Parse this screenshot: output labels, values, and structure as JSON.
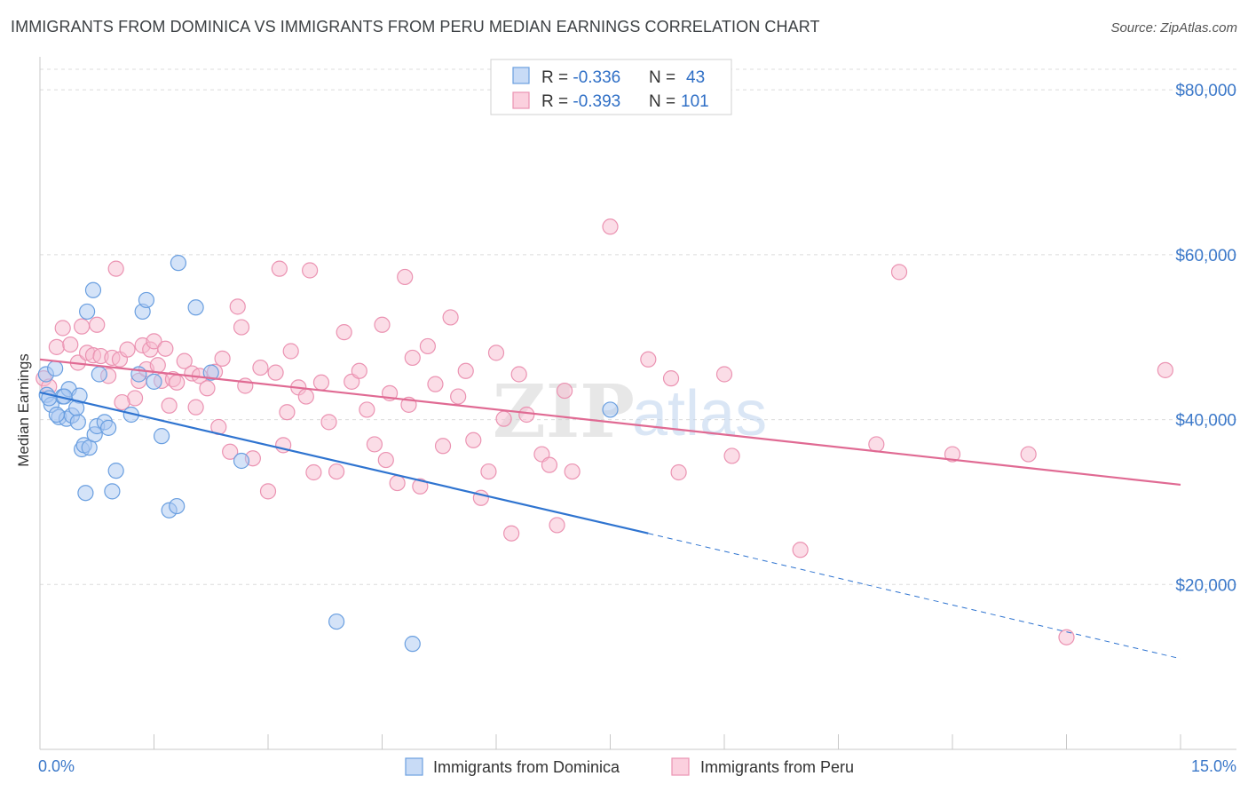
{
  "title": "IMMIGRANTS FROM DOMINICA VS IMMIGRANTS FROM PERU MEDIAN EARNINGS CORRELATION CHART",
  "source": "Source: ZipAtlas.com",
  "watermark": {
    "zip": "ZIP",
    "atlas": "atlas"
  },
  "stats": {
    "dominica": {
      "r_label": "R = ",
      "r_value": "-0.336",
      "n_label": "N = ",
      "n_value": "43"
    },
    "peru": {
      "r_label": "R = ",
      "r_value": "-0.393",
      "n_label": "N = ",
      "n_value": "101"
    }
  },
  "colors": {
    "dominica_fill": "#a9c8f2",
    "dominica_stroke": "#6a9fe0",
    "dominica_line": "#2f74d0",
    "peru_fill": "#f7bcd0",
    "peru_stroke": "#eb93b2",
    "peru_line": "#e06a93",
    "axis_text": "#3b78c9",
    "grid": "#dcdcdc"
  },
  "chart_data": {
    "type": "scatter",
    "title": "IMMIGRANTS FROM DOMINICA VS IMMIGRANTS FROM PERU MEDIAN EARNINGS CORRELATION CHART",
    "xlabel": "",
    "ylabel": "Median Earnings",
    "xlim": [
      0,
      15
    ],
    "ylim": [
      0,
      84000
    ],
    "x_tick_labels": [
      "0.0%",
      "15.0%"
    ],
    "y_ticks": [
      {
        "value": 20000,
        "label": "$20,000"
      },
      {
        "value": 40000,
        "label": "$40,000"
      },
      {
        "value": 60000,
        "label": "$60,000"
      },
      {
        "value": 80000,
        "label": "$80,000"
      }
    ],
    "grid": true,
    "legend_position": "bottom",
    "series": [
      {
        "name": "Immigrants from Dominica",
        "points": [
          [
            0.08,
            45500
          ],
          [
            0.09,
            43000
          ],
          [
            0.15,
            41800
          ],
          [
            0.2,
            46200
          ],
          [
            0.25,
            40300
          ],
          [
            0.3,
            42800
          ],
          [
            0.35,
            40100
          ],
          [
            0.38,
            43700
          ],
          [
            0.42,
            40500
          ],
          [
            0.5,
            39700
          ],
          [
            0.52,
            42900
          ],
          [
            0.55,
            36400
          ],
          [
            0.58,
            36900
          ],
          [
            0.6,
            31100
          ],
          [
            0.62,
            53100
          ],
          [
            0.65,
            36600
          ],
          [
            0.7,
            55700
          ],
          [
            0.72,
            38200
          ],
          [
            0.75,
            39200
          ],
          [
            0.78,
            45500
          ],
          [
            0.85,
            39700
          ],
          [
            0.9,
            39000
          ],
          [
            1.0,
            33800
          ],
          [
            1.2,
            40600
          ],
          [
            1.3,
            45500
          ],
          [
            1.35,
            53100
          ],
          [
            1.4,
            54500
          ],
          [
            1.5,
            44600
          ],
          [
            1.6,
            38000
          ],
          [
            1.7,
            29000
          ],
          [
            1.8,
            29500
          ],
          [
            1.82,
            59000
          ],
          [
            2.05,
            53600
          ],
          [
            2.25,
            45700
          ],
          [
            2.65,
            35000
          ],
          [
            3.9,
            15500
          ],
          [
            4.9,
            12800
          ],
          [
            7.5,
            41200
          ],
          [
            0.95,
            31300
          ],
          [
            0.48,
            41400
          ],
          [
            0.32,
            42800
          ],
          [
            0.12,
            42600
          ],
          [
            0.22,
            40600
          ]
        ]
      },
      {
        "name": "Immigrants from Peru",
        "points": [
          [
            0.05,
            45000
          ],
          [
            0.12,
            44000
          ],
          [
            0.22,
            48800
          ],
          [
            0.3,
            51100
          ],
          [
            0.4,
            49100
          ],
          [
            0.5,
            46900
          ],
          [
            0.55,
            51300
          ],
          [
            0.62,
            48100
          ],
          [
            0.7,
            47800
          ],
          [
            0.75,
            51500
          ],
          [
            0.8,
            47700
          ],
          [
            0.9,
            45300
          ],
          [
            0.95,
            47500
          ],
          [
            1.0,
            58300
          ],
          [
            1.05,
            47300
          ],
          [
            1.15,
            48500
          ],
          [
            1.25,
            42600
          ],
          [
            1.3,
            44700
          ],
          [
            1.35,
            49000
          ],
          [
            1.4,
            46100
          ],
          [
            1.45,
            48500
          ],
          [
            1.5,
            49500
          ],
          [
            1.55,
            46600
          ],
          [
            1.6,
            44700
          ],
          [
            1.65,
            48600
          ],
          [
            1.7,
            41700
          ],
          [
            1.75,
            44900
          ],
          [
            1.8,
            44500
          ],
          [
            1.9,
            47100
          ],
          [
            2.0,
            45600
          ],
          [
            2.05,
            41500
          ],
          [
            2.1,
            45300
          ],
          [
            2.2,
            43800
          ],
          [
            2.3,
            45800
          ],
          [
            2.35,
            39100
          ],
          [
            2.4,
            47400
          ],
          [
            2.5,
            36100
          ],
          [
            2.6,
            53700
          ],
          [
            2.65,
            51200
          ],
          [
            2.7,
            44100
          ],
          [
            2.8,
            35300
          ],
          [
            2.9,
            46300
          ],
          [
            3.0,
            31300
          ],
          [
            3.1,
            45700
          ],
          [
            3.15,
            58300
          ],
          [
            3.2,
            36900
          ],
          [
            3.3,
            48300
          ],
          [
            3.4,
            43900
          ],
          [
            3.5,
            42800
          ],
          [
            3.55,
            58100
          ],
          [
            3.6,
            33600
          ],
          [
            3.7,
            44500
          ],
          [
            3.8,
            39700
          ],
          [
            3.9,
            33700
          ],
          [
            4.0,
            50600
          ],
          [
            4.1,
            44600
          ],
          [
            4.2,
            45900
          ],
          [
            4.3,
            41200
          ],
          [
            4.4,
            37000
          ],
          [
            4.5,
            51500
          ],
          [
            4.55,
            35100
          ],
          [
            4.6,
            43200
          ],
          [
            4.7,
            32300
          ],
          [
            4.8,
            57300
          ],
          [
            4.9,
            47500
          ],
          [
            5.0,
            31900
          ],
          [
            5.1,
            48900
          ],
          [
            5.2,
            44300
          ],
          [
            5.3,
            36800
          ],
          [
            5.4,
            52400
          ],
          [
            5.5,
            42800
          ],
          [
            5.6,
            45900
          ],
          [
            5.7,
            37500
          ],
          [
            5.8,
            30500
          ],
          [
            5.9,
            33700
          ],
          [
            6.0,
            48100
          ],
          [
            6.1,
            40100
          ],
          [
            6.2,
            26200
          ],
          [
            6.3,
            45500
          ],
          [
            6.4,
            40600
          ],
          [
            6.6,
            35800
          ],
          [
            6.7,
            34500
          ],
          [
            6.8,
            27200
          ],
          [
            6.9,
            43500
          ],
          [
            7.0,
            33700
          ],
          [
            7.5,
            63400
          ],
          [
            8.0,
            47300
          ],
          [
            8.3,
            45000
          ],
          [
            8.4,
            33600
          ],
          [
            9.0,
            45500
          ],
          [
            9.1,
            35600
          ],
          [
            10.0,
            24200
          ],
          [
            11.0,
            37000
          ],
          [
            11.3,
            57900
          ],
          [
            12.0,
            35800
          ],
          [
            13.0,
            35800
          ],
          [
            13.5,
            13600
          ],
          [
            14.8,
            46000
          ],
          [
            1.08,
            42100
          ],
          [
            3.25,
            40900
          ],
          [
            4.85,
            41800
          ]
        ]
      }
    ],
    "trend_lines": [
      {
        "series": "Immigrants from Dominica",
        "x_start": 0,
        "y_start": 43300,
        "x_solid_end": 8.0,
        "y_solid_end": 26200,
        "x_end": 15,
        "y_end": 11000
      },
      {
        "series": "Immigrants from Peru",
        "x_start": 0,
        "y_start": 47300,
        "x_end": 15,
        "y_end": 32100
      }
    ]
  },
  "legend": {
    "dominica_label": "Immigrants from Dominica",
    "peru_label": "Immigrants from Peru"
  }
}
